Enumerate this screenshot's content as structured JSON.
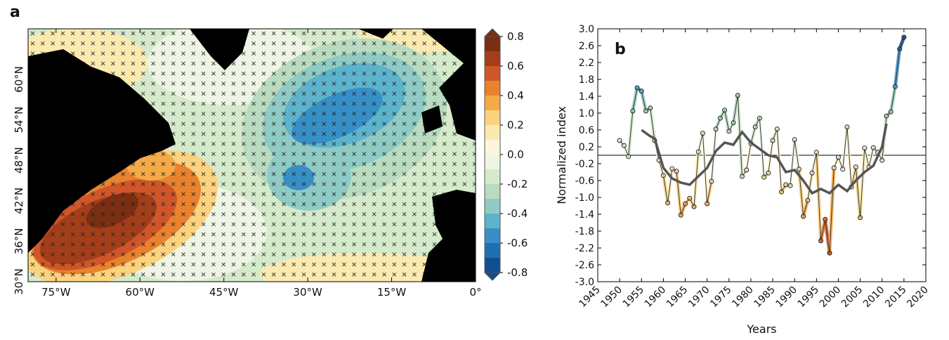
{
  "chart_data": [
    {
      "type": "map",
      "panel_label": "a",
      "xlim": [
        -80,
        0
      ],
      "ylim": [
        30,
        67.5
      ],
      "xticks": [
        {
          "value": -75,
          "label": "75°W"
        },
        {
          "value": -60,
          "label": "60°W"
        },
        {
          "value": -45,
          "label": "45°W"
        },
        {
          "value": -30,
          "label": "30°W"
        },
        {
          "value": -15,
          "label": "15°W"
        },
        {
          "value": 0,
          "label": "0°"
        }
      ],
      "yticks": [
        {
          "value": 30,
          "label": "30°N"
        },
        {
          "value": 36,
          "label": "36°N"
        },
        {
          "value": 42,
          "label": "42°N"
        },
        {
          "value": 48,
          "label": "48°N"
        },
        {
          "value": 54,
          "label": "54°N"
        },
        {
          "value": 60,
          "label": "60°N"
        }
      ],
      "clim": [
        -0.8,
        0.8
      ],
      "cticks": [
        0.8,
        0.6,
        0.4,
        0.2,
        {
          "value": 0,
          "label": "0.0"
        },
        -0.2,
        -0.4,
        -0.6,
        -0.8
      ],
      "colors": [
        "#7a2e12",
        "#a33e1a",
        "#d0562a",
        "#e8822e",
        "#f5aa48",
        "#fbd27e",
        "#fbeab0",
        "#fdf6dc",
        "#eef5e4",
        "#d5eacb",
        "#b9dcc0",
        "#8fcbc4",
        "#5db3cc",
        "#3690c6",
        "#1f6fb2",
        "#124d8e"
      ]
    },
    {
      "type": "line",
      "panel_label": "b",
      "x_label": "Years",
      "y_label": "Normalized index",
      "xlim": [
        1945,
        2020
      ],
      "ylim": [
        -3,
        3
      ],
      "xticks": [
        1945,
        1950,
        1955,
        1960,
        1965,
        1970,
        1975,
        1980,
        1985,
        1990,
        1995,
        2000,
        2005,
        2010,
        2015,
        2020
      ],
      "yticks": [
        {
          "value": 3,
          "label": "3.0"
        },
        2.6,
        2.2,
        1.8,
        1.4,
        {
          "value": 1,
          "label": "1.0"
        },
        0.6,
        0.2,
        -0.2,
        -0.6,
        {
          "value": -1,
          "label": "-1.0"
        },
        -1.4,
        -1.8,
        -2.2,
        -2.6,
        {
          "value": -3,
          "label": "-3.0"
        }
      ],
      "series": [
        {
          "x": [
            1950,
            1951,
            1952,
            1953,
            1954,
            1955,
            1956,
            1957,
            1958,
            1959,
            1960,
            1961,
            1962,
            1963,
            1964,
            1965,
            1966,
            1967,
            1968,
            1969,
            1970,
            1971,
            1972,
            1973,
            1974,
            1975,
            1976,
            1977,
            1978,
            1979,
            1980,
            1981,
            1982,
            1983,
            1984,
            1985,
            1986,
            1987,
            1988,
            1989,
            1990,
            1991,
            1992,
            1993,
            1994,
            1995,
            1996,
            1997,
            1998,
            1999,
            2000,
            2001,
            2002,
            2003,
            2004,
            2005,
            2006,
            2007,
            2008,
            2009,
            2010,
            2011,
            2012,
            2013,
            2014,
            2015
          ],
          "values": [
            0.35,
            0.23,
            -0.03,
            1.05,
            1.6,
            1.52,
            1.05,
            1.12,
            0.35,
            -0.12,
            -0.48,
            -1.13,
            -0.32,
            -0.38,
            -1.42,
            -1.15,
            -1.02,
            -1.22,
            0.08,
            0.52,
            -1.15,
            -0.62,
            0.62,
            0.88,
            1.07,
            0.57,
            0.77,
            1.42,
            -0.5,
            -0.35,
            0.28,
            0.67,
            0.88,
            -0.52,
            -0.42,
            0.35,
            0.62,
            -0.87,
            -0.7,
            -0.72,
            0.37,
            -0.33,
            -1.45,
            -1.07,
            -0.42,
            0.07,
            -2.03,
            -1.52,
            -2.32,
            -0.3,
            -0.05,
            -0.33,
            0.67,
            -0.75,
            -0.28,
            -1.48,
            0.17,
            -0.28,
            0.18,
            0.07,
            -0.12,
            0.93,
            1.03,
            1.63,
            2.52,
            2.8
          ],
          "color": "#333333"
        },
        {
          "x": [
            1955,
            1957,
            1958,
            1960,
            1962,
            1964,
            1966,
            1968,
            1970,
            1972,
            1974,
            1976,
            1978,
            1980,
            1982,
            1984,
            1986,
            1988,
            1990,
            1992,
            1994,
            1996,
            1998,
            2000,
            2002,
            2004,
            2006,
            2008,
            2010,
            2011
          ],
          "values": [
            0.6,
            0.45,
            0.4,
            -0.3,
            -0.55,
            -0.65,
            -0.7,
            -0.5,
            -0.3,
            0.1,
            0.3,
            0.25,
            0.55,
            0.3,
            0.15,
            0.0,
            -0.05,
            -0.4,
            -0.35,
            -0.6,
            -0.9,
            -0.8,
            -0.9,
            -0.7,
            -0.85,
            -0.6,
            -0.4,
            -0.25,
            0.2,
            0.75
          ],
          "color": "#555555"
        }
      ]
    }
  ]
}
